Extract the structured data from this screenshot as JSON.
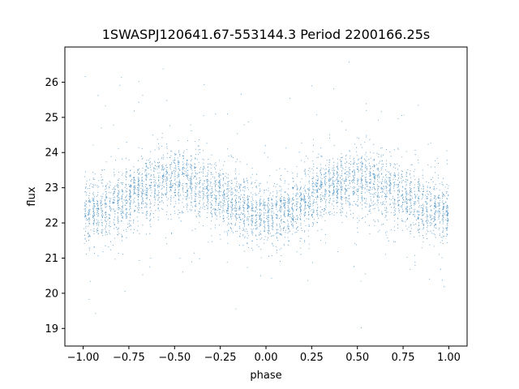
{
  "chart_data": {
    "type": "scatter",
    "title": "1SWASPJ120641.67-553144.3 Period 2200166.25s",
    "xlabel": "phase",
    "ylabel": "flux",
    "xlim": [
      -1.1,
      1.1
    ],
    "ylim": [
      18.5,
      27.0
    ],
    "xticks": [
      -1.0,
      -0.75,
      -0.5,
      -0.25,
      0.0,
      0.25,
      0.5,
      0.75,
      1.0
    ],
    "xtick_labels": [
      "−1.00",
      "−0.75",
      "−0.50",
      "−0.25",
      "0.00",
      "0.25",
      "0.50",
      "0.75",
      "1.00"
    ],
    "yticks": [
      19,
      20,
      21,
      22,
      23,
      24,
      25,
      26
    ],
    "ytick_labels": [
      "19",
      "20",
      "21",
      "22",
      "23",
      "24",
      "25",
      "26"
    ],
    "grid": false,
    "legend": "none",
    "point_color": "#1f77b4",
    "series": [
      {
        "phase_range": [
          -1.0,
          1.0
        ],
        "baseline_flux": 22.75,
        "semi_amplitude": 0.45,
        "minimum_phases": [
          -1.0,
          0.0,
          1.0
        ],
        "maximum_phases": [
          -0.5,
          0.5
        ],
        "typical_flux_range": [
          21.0,
          24.5
        ],
        "outlier_flux_range": [
          19.0,
          26.6
        ]
      }
    ]
  }
}
